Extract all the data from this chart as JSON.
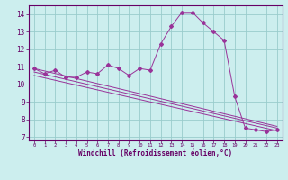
{
  "xlabel": "Windchill (Refroidissement éolien,°C)",
  "bg_color": "#cceeee",
  "line_color": "#993399",
  "grid_color": "#99cccc",
  "xlim": [
    -0.5,
    23.5
  ],
  "ylim": [
    6.8,
    14.5
  ],
  "yticks": [
    7,
    8,
    9,
    10,
    11,
    12,
    13,
    14
  ],
  "xticks": [
    0,
    1,
    2,
    3,
    4,
    5,
    6,
    7,
    8,
    9,
    10,
    11,
    12,
    13,
    14,
    15,
    16,
    17,
    18,
    19,
    20,
    21,
    22,
    23
  ],
  "series1_x": [
    0,
    1,
    2,
    3,
    4,
    5,
    6,
    7,
    8,
    9,
    10,
    11,
    12,
    13,
    14,
    15,
    16,
    17,
    18,
    19,
    20,
    21,
    22,
    23
  ],
  "series1_y": [
    10.9,
    10.6,
    10.8,
    10.4,
    10.4,
    10.7,
    10.6,
    11.1,
    10.9,
    10.5,
    10.9,
    10.8,
    12.3,
    13.3,
    14.1,
    14.1,
    13.5,
    13.0,
    12.5,
    9.3,
    7.5,
    7.4,
    7.3,
    7.4
  ],
  "series2_x": [
    0,
    23
  ],
  "series2_y": [
    10.9,
    7.6
  ],
  "series3_x": [
    0,
    23
  ],
  "series3_y": [
    10.7,
    7.5
  ],
  "series4_x": [
    0,
    23
  ],
  "series4_y": [
    10.5,
    7.35
  ]
}
